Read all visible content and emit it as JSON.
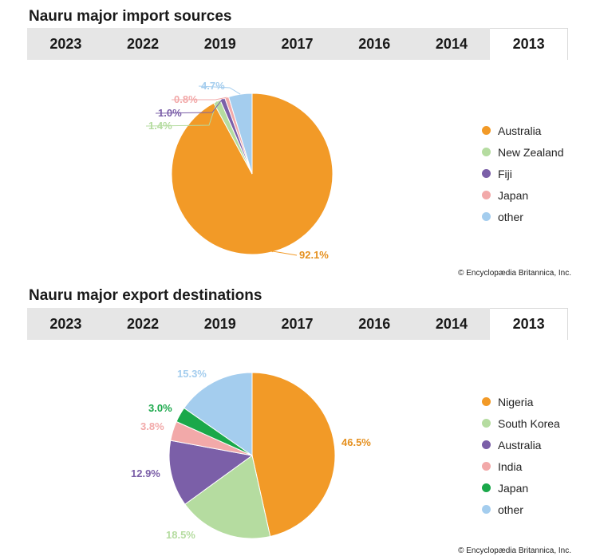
{
  "charts": [
    {
      "title": "Nauru major import sources",
      "tabs": [
        "2023",
        "2022",
        "2019",
        "2017",
        "2016",
        "2014",
        "2013"
      ],
      "active_tab": "2013",
      "credit": "© Encyclopædia Britannica, Inc.",
      "legend": [
        "Australia",
        "New Zealand",
        "Fiji",
        "Japan",
        "other"
      ]
    },
    {
      "title": "Nauru major export destinations",
      "tabs": [
        "2023",
        "2022",
        "2019",
        "2017",
        "2016",
        "2014",
        "2013"
      ],
      "active_tab": "2013",
      "credit": "© Encyclopædia Britannica, Inc.",
      "legend": [
        "Nigeria",
        "South Korea",
        "Australia",
        "India",
        "Japan",
        "other"
      ]
    }
  ],
  "chart_data": [
    {
      "type": "pie",
      "title": "Nauru major import sources",
      "year": "2013",
      "slices": [
        {
          "name": "Australia",
          "value": 92.1,
          "label": "92.1%",
          "color": "#f29a27"
        },
        {
          "name": "New Zealand",
          "value": 1.4,
          "label": "1.4%",
          "color": "#b5dca0"
        },
        {
          "name": "Fiji",
          "value": 1.0,
          "label": "1.0%",
          "color": "#7b5fa8"
        },
        {
          "name": "Japan",
          "value": 0.8,
          "label": "0.8%",
          "color": "#f2a9a9"
        },
        {
          "name": "other",
          "value": 4.7,
          "label": "4.7%",
          "color": "#a4cdee"
        }
      ],
      "legend_position": "right"
    },
    {
      "type": "pie",
      "title": "Nauru major export destinations",
      "year": "2013",
      "slices": [
        {
          "name": "Nigeria",
          "value": 46.5,
          "label": "46.5%",
          "color": "#f29a27"
        },
        {
          "name": "South Korea",
          "value": 18.5,
          "label": "18.5%",
          "color": "#b5dca0"
        },
        {
          "name": "Australia",
          "value": 12.9,
          "label": "12.9%",
          "color": "#7b5fa8"
        },
        {
          "name": "India",
          "value": 3.8,
          "label": "3.8%",
          "color": "#f2a9a9"
        },
        {
          "name": "Japan",
          "value": 3.0,
          "label": "3.0%",
          "color": "#1aa84a"
        },
        {
          "name": "other",
          "value": 15.3,
          "label": "15.3%",
          "color": "#a4cdee"
        }
      ],
      "legend_position": "right"
    }
  ]
}
